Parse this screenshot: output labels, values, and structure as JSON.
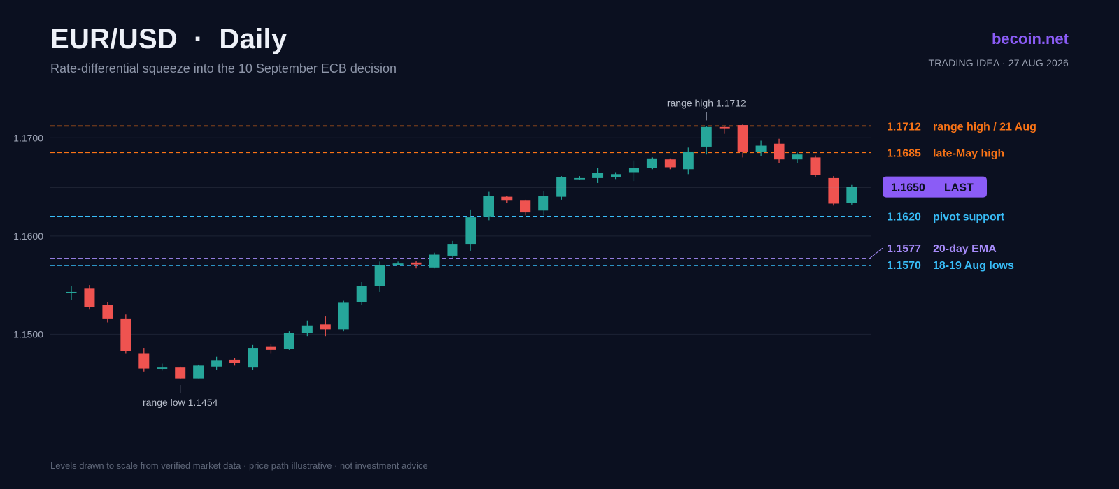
{
  "header": {
    "title": "EUR/USD  ·  Daily",
    "subtitle": "Rate-differential squeeze into the 10 September ECB decision",
    "brand": "becoin.net",
    "idea_tag": "TRADING IDEA · 27 AUG 2026"
  },
  "footer": {
    "note": "Levels drawn to scale from verified market data · price path illustrative · not investment advice"
  },
  "colors": {
    "background": "#0b1020",
    "up": "#26a69a",
    "down": "#ef5350",
    "resistance": "#f97316",
    "support": "#38bdf8",
    "ema": "#a78bfa",
    "last": "#8b5cf6",
    "grid": "#1c2334"
  },
  "chart_data": {
    "type": "candlestick",
    "ylim": [
      1.1385,
      1.1755
    ],
    "yticks": [
      {
        "value": 1.17,
        "label": "1.1700"
      },
      {
        "value": 1.16,
        "label": "1.1600"
      },
      {
        "value": 1.15,
        "label": "1.1500"
      }
    ],
    "candles": [
      {
        "o": 1.1543,
        "h": 1.1549,
        "l": 1.1535,
        "c": 1.1543
      },
      {
        "o": 1.1547,
        "h": 1.155,
        "l": 1.1525,
        "c": 1.1528
      },
      {
        "o": 1.153,
        "h": 1.1533,
        "l": 1.1512,
        "c": 1.1516
      },
      {
        "o": 1.1516,
        "h": 1.152,
        "l": 1.148,
        "c": 1.1483
      },
      {
        "o": 1.148,
        "h": 1.1486,
        "l": 1.1462,
        "c": 1.1465
      },
      {
        "o": 1.1466,
        "h": 1.147,
        "l": 1.1463,
        "c": 1.1466
      },
      {
        "o": 1.1466,
        "h": 1.1467,
        "l": 1.1454,
        "c": 1.1455
      },
      {
        "o": 1.1455,
        "h": 1.1469,
        "l": 1.1455,
        "c": 1.1468
      },
      {
        "o": 1.1467,
        "h": 1.1477,
        "l": 1.1464,
        "c": 1.1473
      },
      {
        "o": 1.1474,
        "h": 1.1476,
        "l": 1.1468,
        "c": 1.1471
      },
      {
        "o": 1.1466,
        "h": 1.1489,
        "l": 1.1464,
        "c": 1.1486
      },
      {
        "o": 1.1487,
        "h": 1.149,
        "l": 1.148,
        "c": 1.1484
      },
      {
        "o": 1.1485,
        "h": 1.1503,
        "l": 1.1484,
        "c": 1.1501
      },
      {
        "o": 1.1501,
        "h": 1.1514,
        "l": 1.1498,
        "c": 1.1509
      },
      {
        "o": 1.151,
        "h": 1.1518,
        "l": 1.1498,
        "c": 1.1505
      },
      {
        "o": 1.1505,
        "h": 1.1534,
        "l": 1.1503,
        "c": 1.1532
      },
      {
        "o": 1.1533,
        "h": 1.1553,
        "l": 1.153,
        "c": 1.1549
      },
      {
        "o": 1.1549,
        "h": 1.1574,
        "l": 1.1543,
        "c": 1.157
      },
      {
        "o": 1.1572,
        "h": 1.1574,
        "l": 1.1571,
        "c": 1.1572
      },
      {
        "o": 1.1573,
        "h": 1.1575,
        "l": 1.1567,
        "c": 1.1571
      },
      {
        "o": 1.1568,
        "h": 1.1583,
        "l": 1.1567,
        "c": 1.1581
      },
      {
        "o": 1.158,
        "h": 1.1595,
        "l": 1.1578,
        "c": 1.1592
      },
      {
        "o": 1.1592,
        "h": 1.1627,
        "l": 1.1585,
        "c": 1.1619
      },
      {
        "o": 1.162,
        "h": 1.1645,
        "l": 1.1616,
        "c": 1.1641
      },
      {
        "o": 1.164,
        "h": 1.1641,
        "l": 1.1634,
        "c": 1.1636
      },
      {
        "o": 1.1636,
        "h": 1.1637,
        "l": 1.1621,
        "c": 1.1624
      },
      {
        "o": 1.1626,
        "h": 1.1646,
        "l": 1.1621,
        "c": 1.1641
      },
      {
        "o": 1.164,
        "h": 1.1661,
        "l": 1.1637,
        "c": 1.166
      },
      {
        "o": 1.1659,
        "h": 1.1661,
        "l": 1.1657,
        "c": 1.1659
      },
      {
        "o": 1.1659,
        "h": 1.1669,
        "l": 1.1654,
        "c": 1.1664
      },
      {
        "o": 1.166,
        "h": 1.1665,
        "l": 1.1658,
        "c": 1.1663
      },
      {
        "o": 1.1665,
        "h": 1.1677,
        "l": 1.1656,
        "c": 1.1669
      },
      {
        "o": 1.1669,
        "h": 1.168,
        "l": 1.1668,
        "c": 1.1679
      },
      {
        "o": 1.1678,
        "h": 1.1679,
        "l": 1.1668,
        "c": 1.167
      },
      {
        "o": 1.1668,
        "h": 1.169,
        "l": 1.1663,
        "c": 1.1686
      },
      {
        "o": 1.1691,
        "h": 1.1712,
        "l": 1.1683,
        "c": 1.1711
      },
      {
        "o": 1.1711,
        "h": 1.1712,
        "l": 1.1704,
        "c": 1.171
      },
      {
        "o": 1.1713,
        "h": 1.1714,
        "l": 1.168,
        "c": 1.1686
      },
      {
        "o": 1.1686,
        "h": 1.1697,
        "l": 1.1681,
        "c": 1.1692
      },
      {
        "o": 1.1694,
        "h": 1.1699,
        "l": 1.1674,
        "c": 1.1678
      },
      {
        "o": 1.1678,
        "h": 1.1685,
        "l": 1.1674,
        "c": 1.1683
      },
      {
        "o": 1.168,
        "h": 1.1682,
        "l": 1.166,
        "c": 1.1662
      },
      {
        "o": 1.1659,
        "h": 1.1661,
        "l": 1.1631,
        "c": 1.1633
      },
      {
        "o": 1.1634,
        "h": 1.1652,
        "l": 1.1632,
        "c": 1.165
      }
    ],
    "levels": [
      {
        "price": 1.1712,
        "price_label": "1.1712",
        "name": "range high / 21 Aug",
        "color": "#f97316"
      },
      {
        "price": 1.1685,
        "price_label": "1.1685",
        "name": "late-May high",
        "color": "#f97316"
      },
      {
        "price": 1.162,
        "price_label": "1.1620",
        "name": "pivot support",
        "color": "#38bdf8"
      },
      {
        "price": 1.1577,
        "price_label": "1.1577",
        "name": "20-day EMA",
        "color": "#a78bfa"
      },
      {
        "price": 1.157,
        "price_label": "1.1570",
        "name": "18-19 Aug lows",
        "color": "#38bdf8"
      }
    ],
    "last": {
      "price": 1.165,
      "price_label": "1.1650",
      "tag": "LAST"
    },
    "annotations": [
      {
        "text": "range high 1.1712",
        "candle_index": 35,
        "price": 1.1712,
        "position": "above"
      },
      {
        "text": "range low 1.1454",
        "candle_index": 6,
        "price": 1.1454,
        "position": "below"
      }
    ]
  }
}
